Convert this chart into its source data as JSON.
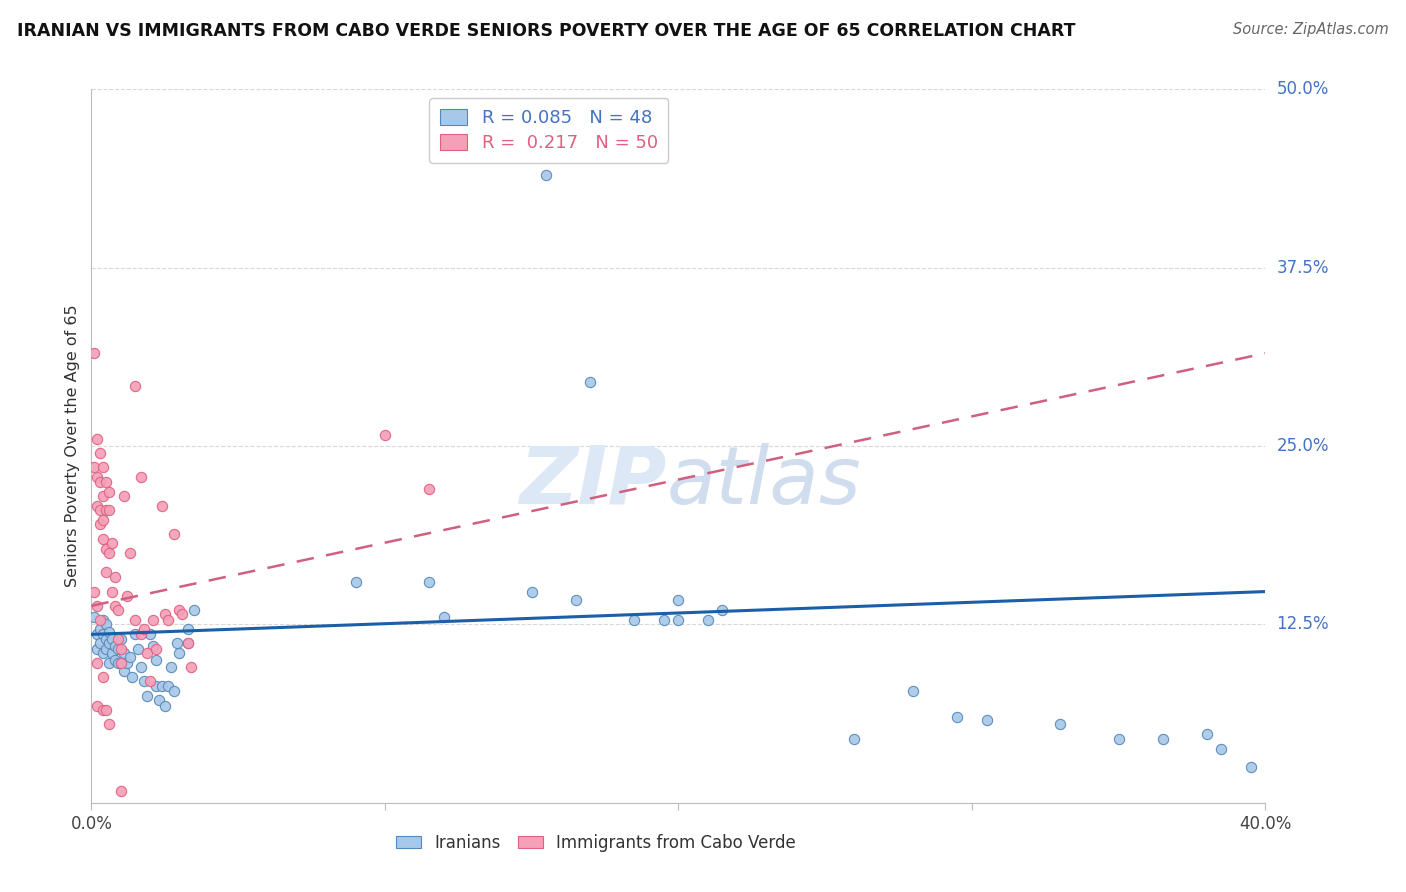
{
  "title": "IRANIAN VS IMMIGRANTS FROM CABO VERDE SENIORS POVERTY OVER THE AGE OF 65 CORRELATION CHART",
  "source": "Source: ZipAtlas.com",
  "ylabel_label": "Seniors Poverty Over the Age of 65",
  "xmin": 0.0,
  "xmax": 0.4,
  "ymin": 0.0,
  "ymax": 0.5,
  "right_ytick_labels": [
    "50.0%",
    "37.5%",
    "25.0%",
    "12.5%"
  ],
  "right_ytick_values": [
    0.5,
    0.375,
    0.25,
    0.125
  ],
  "iranian_scatter": [
    [
      0.001,
      0.13
    ],
    [
      0.002,
      0.118
    ],
    [
      0.002,
      0.108
    ],
    [
      0.003,
      0.122
    ],
    [
      0.003,
      0.112
    ],
    [
      0.004,
      0.128
    ],
    [
      0.004,
      0.118
    ],
    [
      0.004,
      0.105
    ],
    [
      0.005,
      0.125
    ],
    [
      0.005,
      0.115
    ],
    [
      0.005,
      0.108
    ],
    [
      0.006,
      0.12
    ],
    [
      0.006,
      0.112
    ],
    [
      0.006,
      0.098
    ],
    [
      0.007,
      0.115
    ],
    [
      0.007,
      0.105
    ],
    [
      0.008,
      0.11
    ],
    [
      0.008,
      0.1
    ],
    [
      0.009,
      0.108
    ],
    [
      0.009,
      0.098
    ],
    [
      0.01,
      0.115
    ],
    [
      0.01,
      0.098
    ],
    [
      0.011,
      0.105
    ],
    [
      0.011,
      0.092
    ],
    [
      0.012,
      0.098
    ],
    [
      0.013,
      0.102
    ],
    [
      0.014,
      0.088
    ],
    [
      0.015,
      0.118
    ],
    [
      0.016,
      0.108
    ],
    [
      0.017,
      0.095
    ],
    [
      0.018,
      0.085
    ],
    [
      0.019,
      0.075
    ],
    [
      0.02,
      0.118
    ],
    [
      0.021,
      0.11
    ],
    [
      0.022,
      0.1
    ],
    [
      0.022,
      0.082
    ],
    [
      0.023,
      0.072
    ],
    [
      0.024,
      0.082
    ],
    [
      0.025,
      0.068
    ],
    [
      0.026,
      0.082
    ],
    [
      0.027,
      0.095
    ],
    [
      0.028,
      0.078
    ],
    [
      0.029,
      0.112
    ],
    [
      0.03,
      0.105
    ],
    [
      0.033,
      0.122
    ],
    [
      0.033,
      0.112
    ],
    [
      0.035,
      0.135
    ],
    [
      0.155,
      0.44
    ],
    [
      0.17,
      0.295
    ],
    [
      0.2,
      0.128
    ],
    [
      0.195,
      0.128
    ],
    [
      0.26,
      0.045
    ],
    [
      0.09,
      0.155
    ],
    [
      0.115,
      0.155
    ],
    [
      0.12,
      0.13
    ],
    [
      0.15,
      0.148
    ],
    [
      0.165,
      0.142
    ],
    [
      0.185,
      0.128
    ],
    [
      0.2,
      0.142
    ],
    [
      0.21,
      0.128
    ],
    [
      0.215,
      0.135
    ],
    [
      0.28,
      0.078
    ],
    [
      0.295,
      0.06
    ],
    [
      0.305,
      0.058
    ],
    [
      0.33,
      0.055
    ],
    [
      0.35,
      0.045
    ],
    [
      0.365,
      0.045
    ],
    [
      0.38,
      0.048
    ],
    [
      0.385,
      0.038
    ],
    [
      0.395,
      0.025
    ]
  ],
  "caboverde_scatter": [
    [
      0.001,
      0.315
    ],
    [
      0.001,
      0.235
    ],
    [
      0.002,
      0.255
    ],
    [
      0.002,
      0.228
    ],
    [
      0.002,
      0.208
    ],
    [
      0.003,
      0.245
    ],
    [
      0.003,
      0.225
    ],
    [
      0.003,
      0.205
    ],
    [
      0.003,
      0.195
    ],
    [
      0.004,
      0.235
    ],
    [
      0.004,
      0.215
    ],
    [
      0.004,
      0.198
    ],
    [
      0.004,
      0.185
    ],
    [
      0.005,
      0.225
    ],
    [
      0.005,
      0.205
    ],
    [
      0.005,
      0.178
    ],
    [
      0.005,
      0.162
    ],
    [
      0.006,
      0.218
    ],
    [
      0.006,
      0.205
    ],
    [
      0.006,
      0.175
    ],
    [
      0.007,
      0.182
    ],
    [
      0.007,
      0.148
    ],
    [
      0.008,
      0.158
    ],
    [
      0.008,
      0.138
    ],
    [
      0.009,
      0.135
    ],
    [
      0.009,
      0.115
    ],
    [
      0.01,
      0.108
    ],
    [
      0.01,
      0.098
    ],
    [
      0.011,
      0.215
    ],
    [
      0.012,
      0.145
    ],
    [
      0.013,
      0.175
    ],
    [
      0.015,
      0.292
    ],
    [
      0.015,
      0.128
    ],
    [
      0.017,
      0.228
    ],
    [
      0.017,
      0.118
    ],
    [
      0.018,
      0.122
    ],
    [
      0.019,
      0.105
    ],
    [
      0.02,
      0.085
    ],
    [
      0.021,
      0.128
    ],
    [
      0.022,
      0.108
    ],
    [
      0.024,
      0.208
    ],
    [
      0.025,
      0.132
    ],
    [
      0.026,
      0.128
    ],
    [
      0.028,
      0.188
    ],
    [
      0.03,
      0.135
    ],
    [
      0.031,
      0.132
    ],
    [
      0.033,
      0.112
    ],
    [
      0.034,
      0.095
    ],
    [
      0.002,
      0.068
    ],
    [
      0.004,
      0.065
    ],
    [
      0.005,
      0.065
    ],
    [
      0.006,
      0.055
    ],
    [
      0.002,
      0.098
    ],
    [
      0.004,
      0.088
    ],
    [
      0.01,
      0.008
    ],
    [
      0.001,
      0.148
    ],
    [
      0.002,
      0.138
    ],
    [
      0.003,
      0.128
    ],
    [
      0.1,
      0.258
    ],
    [
      0.115,
      0.22
    ]
  ],
  "iranian_trend_x": [
    0.0,
    0.4
  ],
  "iranian_trend_y": [
    0.118,
    0.148
  ],
  "caboverde_trend_x": [
    0.0,
    0.4
  ],
  "caboverde_trend_y": [
    0.138,
    0.315
  ],
  "scatter_color_iranian": "#a8c8e8",
  "scatter_edge_iranian": "#5588bb",
  "scatter_color_caboverde": "#f4a0b8",
  "scatter_edge_caboverde": "#e06080",
  "trend_color_iranian": "#1a5fa8",
  "trend_color_caboverde": "#d06080",
  "background_color": "#ffffff",
  "grid_color": "#d8d8d8",
  "title_color": "#111111",
  "right_axis_color": "#4472c4",
  "watermark_zip": "ZIP",
  "watermark_atlas": "atlas",
  "watermark_color": "#dce8f5"
}
